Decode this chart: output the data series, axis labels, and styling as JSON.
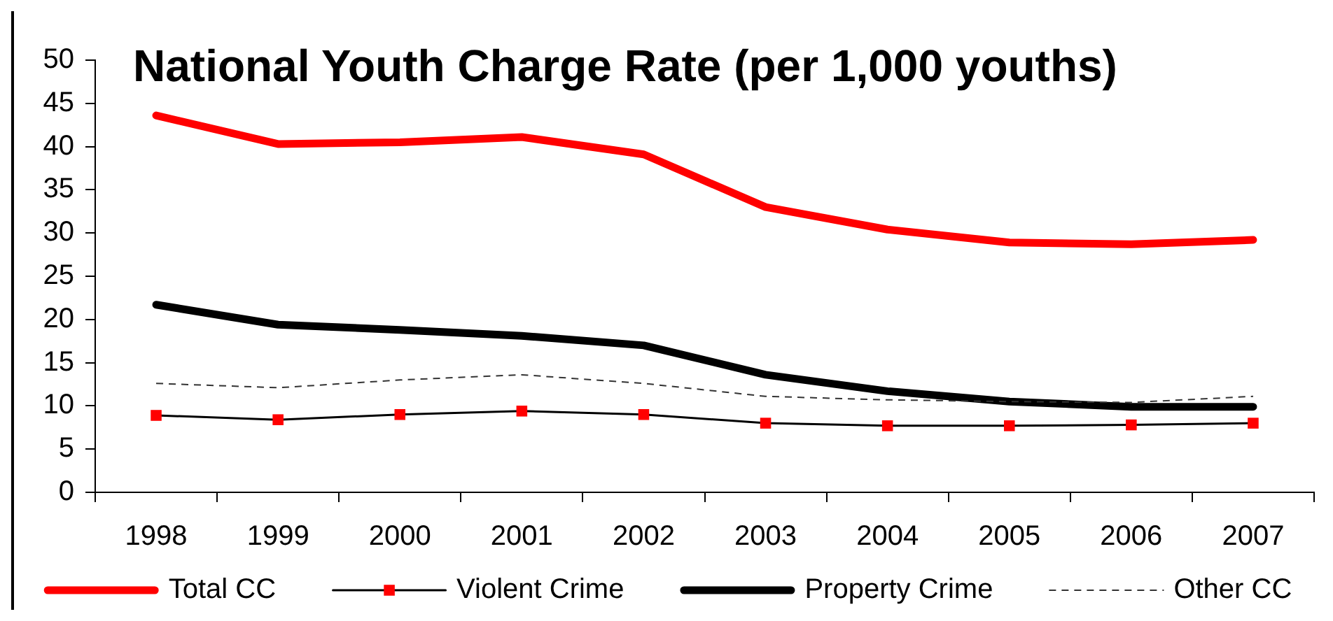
{
  "chart_data": {
    "type": "line",
    "title": "National Youth Charge Rate (per 1,000 youths)",
    "categories": [
      "1998",
      "1999",
      "2000",
      "2001",
      "2002",
      "2003",
      "2004",
      "2005",
      "2006",
      "2007"
    ],
    "series": [
      {
        "name": "Total CC",
        "color": "#ff0000",
        "values": [
          43.6,
          40.3,
          40.5,
          41.1,
          39.1,
          33.0,
          30.4,
          28.9,
          28.7,
          29.2
        ]
      },
      {
        "name": "Violent Crime",
        "color": "#000000",
        "colors": [
          "#ff0000",
          "#ff0000",
          "#ff0000",
          "#ff0000",
          "#ff0000",
          "#ff0000",
          "#ff0000",
          "#ff0000",
          "#ff0000",
          "#ff0000"
        ],
        "marker": "square",
        "values": [
          8.9,
          8.4,
          9.0,
          9.4,
          9.0,
          8.0,
          7.7,
          7.7,
          7.8,
          8.0
        ]
      },
      {
        "name": "Property Crime",
        "color": "#000000",
        "values": [
          21.7,
          19.4,
          18.8,
          18.1,
          17.0,
          13.6,
          11.7,
          10.5,
          9.9,
          9.9
        ]
      },
      {
        "name": "Other CC",
        "color": "#333333",
        "line_style": "dashed",
        "values": [
          12.6,
          12.1,
          13.0,
          13.6,
          12.6,
          11.1,
          10.7,
          10.5,
          10.4,
          11.1
        ]
      }
    ],
    "ylim": [
      0,
      50
    ],
    "yticks": [
      0,
      5,
      10,
      15,
      20,
      25,
      30,
      35,
      40,
      45,
      50
    ],
    "grid": false,
    "legend": "bottom",
    "marker": "none",
    "line_style": "solid"
  }
}
